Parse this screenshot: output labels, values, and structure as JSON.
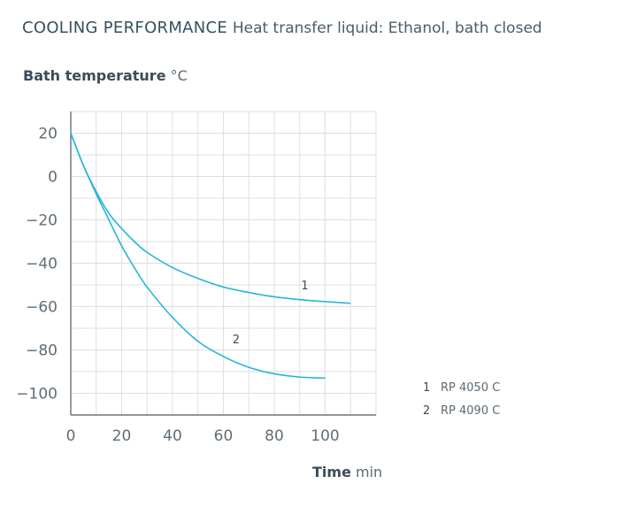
{
  "header": {
    "title": "COOLING PERFORMANCE",
    "subtitle": "Heat transfer liquid: Ethanol, bath closed"
  },
  "axes": {
    "ylabel": "Bath temperature",
    "yunit": "°C",
    "xlabel": "Time",
    "xunit": "min"
  },
  "legend": [
    {
      "num": "1",
      "label": "RP 4050 C"
    },
    {
      "num": "2",
      "label": "RP 4090 C"
    }
  ],
  "colors": {
    "series": "#27b5d9",
    "grid": "#dcdfe2",
    "axis": "#4c5b66"
  },
  "chart_data": {
    "type": "line",
    "title": "COOLING PERFORMANCE",
    "subtitle": "Heat transfer liquid: Ethanol, bath closed",
    "xlabel": "Time min",
    "ylabel": "Bath temperature °C",
    "xlim": [
      0,
      120
    ],
    "ylim": [
      -110,
      30
    ],
    "xticks": [
      0,
      20,
      40,
      60,
      80,
      100
    ],
    "yticks": [
      20,
      0,
      -20,
      -40,
      -60,
      -80,
      -100
    ],
    "grid": true,
    "legend_position": "bottom-right",
    "series": [
      {
        "name": "1",
        "x": [
          0,
          5,
          10,
          15,
          20,
          25,
          30,
          40,
          50,
          60,
          70,
          80,
          90,
          100,
          110
        ],
        "y": [
          20,
          5,
          -7,
          -17,
          -24,
          -30,
          -35,
          -42,
          -47,
          -51,
          -53.5,
          -55.5,
          -56.8,
          -57.7,
          -58.5
        ]
      },
      {
        "name": "2",
        "x": [
          0,
          5,
          10,
          15,
          20,
          25,
          30,
          40,
          50,
          60,
          70,
          80,
          90,
          100
        ],
        "y": [
          20,
          5,
          -8,
          -20,
          -32,
          -42,
          -51,
          -65,
          -76,
          -83,
          -88,
          -91,
          -92.5,
          -93
        ]
      }
    ],
    "annotations": [
      {
        "text": "1",
        "x": 92,
        "y": -52
      },
      {
        "text": "2",
        "x": 65,
        "y": -77
      }
    ]
  }
}
